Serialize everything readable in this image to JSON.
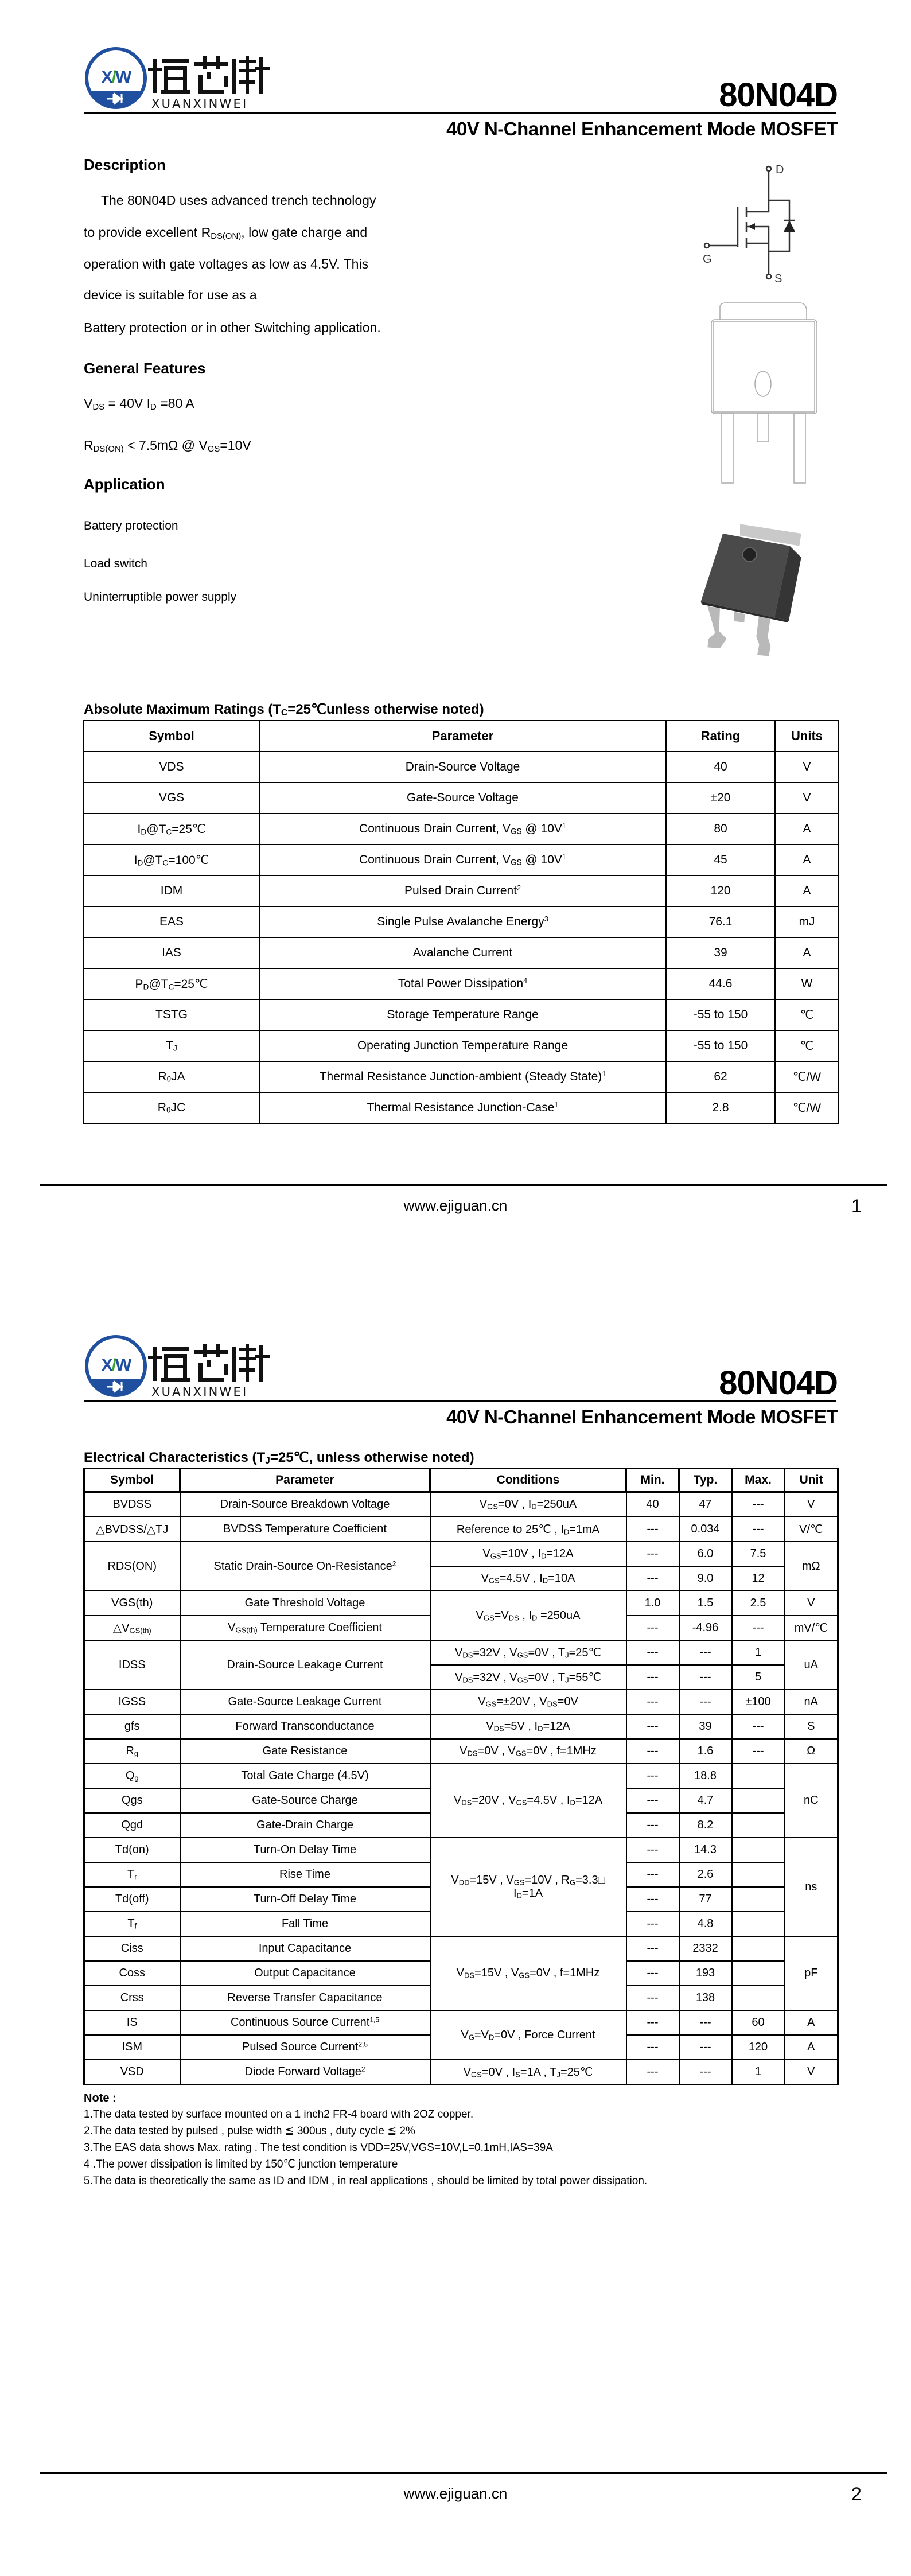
{
  "header": {
    "logo_text_cn": "烜芯微",
    "logo_text_en": "XUANXINWEI",
    "logo_mark": "XW",
    "part_number": "80N04D",
    "subtitle": "40V N-Channel Enhancement Mode MOSFET",
    "brand_color": "#1f4f9e",
    "accent_color": "#3aa335"
  },
  "page1": {
    "description_title": "Description",
    "description_lines": [
      "The 80N04D uses advanced trench technology",
      "to provide excellent R_{DS(ON)}, low gate charge and",
      "operation with gate voltages as low as 4.5V. This",
      "device is suitable for use as a",
      "Battery protection or in other Switching application."
    ],
    "features_title": "General Features",
    "features": [
      "V_{DS} = 40V  I_{D} =80 A",
      "R_{DS(ON)} < 7.5mΩ @ V_{GS}=10V"
    ],
    "application_title": "Application",
    "applications": [
      "Battery protection",
      "Load switch",
      "Uninterruptible power supply"
    ],
    "symbol_labels": {
      "drain": "D",
      "gate": "G",
      "source": "S"
    },
    "ratings_title": "Absolute Maximum Ratings (T_{C}=25℃unless otherwise noted)",
    "ratings_headers": [
      "Symbol",
      "Parameter",
      "Rating",
      "Units"
    ],
    "ratings_rows": [
      [
        "VDS",
        "Drain-Source Voltage",
        "40",
        "V"
      ],
      [
        "VGS",
        "Gate-Source Voltage",
        "±20",
        "V"
      ],
      [
        "I_{D}@T_{C}=25℃",
        "Continuous Drain Current, V_{GS} @ 10V^{1}",
        "80",
        "A"
      ],
      [
        "I_{D}@T_{C}=100℃",
        "Continuous Drain Current, V_{GS} @ 10V^{1}",
        "45",
        "A"
      ],
      [
        "IDM",
        "Pulsed Drain Current^{2}",
        "120",
        "A"
      ],
      [
        "EAS",
        "Single Pulse Avalanche Energy^{3}",
        "76.1",
        "mJ"
      ],
      [
        "IAS",
        "Avalanche Current",
        "39",
        "A"
      ],
      [
        "P_{D}@T_{C}=25℃",
        "Total Power Dissipation^{4}",
        "44.6",
        "W"
      ],
      [
        "TSTG",
        "Storage Temperature Range",
        "-55 to 150",
        "℃"
      ],
      [
        "T_{J}",
        "Operating Junction Temperature Range",
        "-55 to 150",
        "℃"
      ],
      [
        "R_{θ}JA",
        "Thermal Resistance Junction-ambient (Steady State)^{1}",
        "62",
        "℃/W"
      ],
      [
        "R_{θ}JC",
        "Thermal Resistance Junction-Case^{1}",
        "2.8",
        "℃/W"
      ]
    ],
    "footer_url": "www.ejiguan.cn",
    "page_number": "1"
  },
  "page2": {
    "ec_title": "Electrical Characteristics (T_{J}=25℃, unless otherwise noted)",
    "ec_headers": [
      "Symbol",
      "Parameter",
      "Conditions",
      "Min.",
      "Typ.",
      "Max.",
      "Unit"
    ],
    "ec_rows": [
      [
        {
          "t": "BVDSS"
        },
        {
          "t": "Drain-Source Breakdown Voltage"
        },
        {
          "t": "V_{GS}=0V , I_{D}=250uA"
        },
        {
          "t": "40"
        },
        {
          "t": "47"
        },
        {
          "t": "---"
        },
        {
          "t": "V"
        }
      ],
      [
        {
          "t": "△BVDSS/△TJ"
        },
        {
          "t": "BVDSS Temperature Coefficient"
        },
        {
          "t": "Reference to 25℃ , I_{D}=1mA"
        },
        {
          "t": "---"
        },
        {
          "t": "0.034"
        },
        {
          "t": "---"
        },
        {
          "t": "V/℃"
        }
      ],
      [
        {
          "t": "RDS(ON)",
          "rowspan": 2
        },
        {
          "t": "Static Drain-Source On-Resistance^{2}",
          "rowspan": 2
        },
        {
          "t": "V_{GS}=10V , I_{D}=12A"
        },
        {
          "t": "---"
        },
        {
          "t": "6.0"
        },
        {
          "t": "7.5"
        },
        {
          "t": "mΩ",
          "rowspan": 2
        }
      ],
      [
        null,
        null,
        {
          "t": "V_{GS}=4.5V , I_{D}=10A"
        },
        {
          "t": "---"
        },
        {
          "t": "9.0"
        },
        {
          "t": "12"
        },
        null
      ],
      [
        {
          "t": "VGS(th)"
        },
        {
          "t": "Gate Threshold Voltage"
        },
        {
          "t": "V_{GS}=V_{DS} , I_{D} =250uA",
          "rowspan": 2
        },
        {
          "t": "1.0"
        },
        {
          "t": "1.5"
        },
        {
          "t": "2.5"
        },
        {
          "t": "V"
        }
      ],
      [
        {
          "t": "△V_{GS(th)}"
        },
        {
          "t": "V_{GS(th)} Temperature Coefficient"
        },
        null,
        {
          "t": "---"
        },
        {
          "t": "-4.96"
        },
        {
          "t": "---"
        },
        {
          "t": "mV/℃"
        }
      ],
      [
        {
          "t": "IDSS",
          "rowspan": 2
        },
        {
          "t": "Drain-Source Leakage Current",
          "rowspan": 2
        },
        {
          "t": "V_{DS}=32V , V_{GS}=0V , T_{J}=25℃"
        },
        {
          "t": "---"
        },
        {
          "t": "---"
        },
        {
          "t": "1"
        },
        {
          "t": "uA",
          "rowspan": 2
        }
      ],
      [
        null,
        null,
        {
          "t": "V_{DS}=32V , V_{GS}=0V , T_{J}=55℃"
        },
        {
          "t": "---"
        },
        {
          "t": "---"
        },
        {
          "t": "5"
        },
        null
      ],
      [
        {
          "t": "IGSS"
        },
        {
          "t": "Gate-Source Leakage Current"
        },
        {
          "t": "V_{GS}=±20V , V_{DS}=0V"
        },
        {
          "t": "---"
        },
        {
          "t": "---"
        },
        {
          "t": "±100"
        },
        {
          "t": "nA"
        }
      ],
      [
        {
          "t": "gfs"
        },
        {
          "t": "Forward Transconductance"
        },
        {
          "t": "V_{DS}=5V , I_{D}=12A"
        },
        {
          "t": "---"
        },
        {
          "t": "39"
        },
        {
          "t": "---"
        },
        {
          "t": "S"
        }
      ],
      [
        {
          "t": "R_{g}"
        },
        {
          "t": "Gate Resistance"
        },
        {
          "t": "V_{DS}=0V , V_{GS}=0V , f=1MHz"
        },
        {
          "t": "---"
        },
        {
          "t": "1.6"
        },
        {
          "t": "---"
        },
        {
          "t": "Ω"
        }
      ],
      [
        {
          "t": "Q_{g}"
        },
        {
          "t": "Total Gate Charge (4.5V)"
        },
        {
          "t": "V_{DS}=20V , V_{GS}=4.5V , I_{D}=12A",
          "rowspan": 3
        },
        {
          "t": "---"
        },
        {
          "t": "18.8"
        },
        {
          "t": ""
        },
        {
          "t": "nC",
          "rowspan": 3
        }
      ],
      [
        {
          "t": "Qgs"
        },
        {
          "t": "Gate-Source Charge"
        },
        null,
        {
          "t": "---"
        },
        {
          "t": "4.7"
        },
        {
          "t": ""
        },
        null
      ],
      [
        {
          "t": "Qgd"
        },
        {
          "t": "Gate-Drain Charge"
        },
        null,
        {
          "t": "---"
        },
        {
          "t": "8.2"
        },
        {
          "t": ""
        },
        null
      ],
      [
        {
          "t": "Td(on)"
        },
        {
          "t": "Turn-On Delay Time"
        },
        {
          "t": "V_{DD}=15V , V_{GS}=10V , R_{G}=3.3□\nI_{D}=1A",
          "rowspan": 4
        },
        {
          "t": "---"
        },
        {
          "t": "14.3"
        },
        {
          "t": ""
        },
        {
          "t": "ns",
          "rowspan": 4
        }
      ],
      [
        {
          "t": "T_{r}"
        },
        {
          "t": "Rise Time"
        },
        null,
        {
          "t": "---"
        },
        {
          "t": "2.6"
        },
        {
          "t": ""
        },
        null
      ],
      [
        {
          "t": "Td(off)"
        },
        {
          "t": "Turn-Off Delay Time"
        },
        null,
        {
          "t": "---"
        },
        {
          "t": "77"
        },
        {
          "t": ""
        },
        null
      ],
      [
        {
          "t": "T_{f}"
        },
        {
          "t": "Fall Time"
        },
        null,
        {
          "t": "---"
        },
        {
          "t": "4.8"
        },
        {
          "t": ""
        },
        null
      ],
      [
        {
          "t": "Ciss"
        },
        {
          "t": "Input Capacitance"
        },
        {
          "t": "V_{DS}=15V , V_{GS}=0V , f=1MHz",
          "rowspan": 3
        },
        {
          "t": "---"
        },
        {
          "t": "2332"
        },
        {
          "t": ""
        },
        {
          "t": "pF",
          "rowspan": 3
        }
      ],
      [
        {
          "t": "Coss"
        },
        {
          "t": "Output Capacitance"
        },
        null,
        {
          "t": "---"
        },
        {
          "t": "193"
        },
        {
          "t": ""
        },
        null
      ],
      [
        {
          "t": "Crss"
        },
        {
          "t": "Reverse Transfer Capacitance"
        },
        null,
        {
          "t": "---"
        },
        {
          "t": "138"
        },
        {
          "t": ""
        },
        null
      ],
      [
        {
          "t": "IS"
        },
        {
          "t": "Continuous Source Current^{1,5}"
        },
        {
          "t": "V_{G}=V_{D}=0V , Force Current",
          "rowspan": 2
        },
        {
          "t": "---"
        },
        {
          "t": "---"
        },
        {
          "t": "60"
        },
        {
          "t": "A"
        }
      ],
      [
        {
          "t": "ISM"
        },
        {
          "t": "Pulsed Source Current^{2,5}"
        },
        null,
        {
          "t": "---"
        },
        {
          "t": "---"
        },
        {
          "t": "120"
        },
        {
          "t": "A"
        }
      ],
      [
        {
          "t": "VSD"
        },
        {
          "t": "Diode Forward Voltage^{2}"
        },
        {
          "t": "V_{GS}=0V , I_{S}=1A , T_{J}=25℃"
        },
        {
          "t": "---"
        },
        {
          "t": "---"
        },
        {
          "t": "1"
        },
        {
          "t": "V"
        }
      ]
    ],
    "note_title": "Note :",
    "notes": [
      "1.The data tested by surface mounted on a 1 inch2 FR-4 board with 2OZ copper.",
      "2.The data tested by pulsed , pulse width ≦ 300us , duty cycle ≦ 2%",
      "3.The EAS data shows Max. rating . The test condition is VDD=25V,VGS=10V,L=0.1mH,IAS=39A",
      "4 .The power dissipation is limited by 150℃ junction temperature",
      "5.The data is theoretically the same as ID and IDM , in real applications , should be limited by total power dissipation."
    ],
    "footer_url": "www.ejiguan.cn",
    "page_number": "2"
  }
}
